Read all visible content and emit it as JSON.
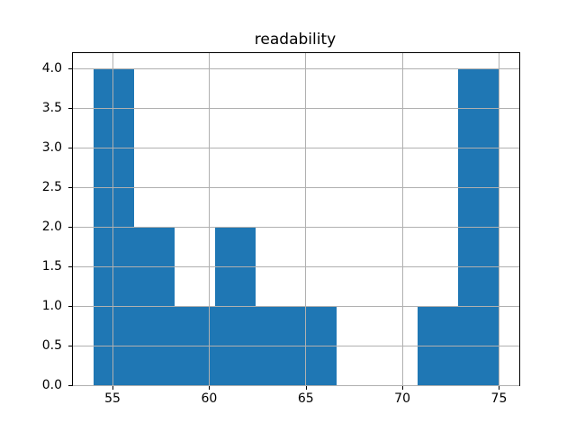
{
  "chart_data": {
    "type": "bar",
    "chart_kind": "histogram",
    "title": "readability",
    "xlabel": "",
    "ylabel": "",
    "bin_edges": [
      54.0,
      56.1,
      58.2,
      60.3,
      62.4,
      64.5,
      66.6,
      68.7,
      70.8,
      72.9,
      75.0
    ],
    "counts": [
      4,
      2,
      1,
      2,
      1,
      1,
      0,
      0,
      1,
      4
    ],
    "xlim": [
      52.95,
      76.05
    ],
    "ylim": [
      0,
      4.2
    ],
    "x_ticks": [
      55,
      60,
      65,
      70,
      75
    ],
    "x_tick_labels": [
      "55",
      "60",
      "65",
      "70",
      "75"
    ],
    "y_ticks": [
      0.0,
      0.5,
      1.0,
      1.5,
      2.0,
      2.5,
      3.0,
      3.5,
      4.0
    ],
    "y_tick_labels": [
      "0.0",
      "0.5",
      "1.0",
      "1.5",
      "2.0",
      "2.5",
      "3.0",
      "3.5",
      "4.0"
    ],
    "grid": true,
    "grid_on_top_of_bars": true,
    "legend": null,
    "colors": {
      "bar": "#1f77b4",
      "grid": "#b0b0b0",
      "spine": "#000000",
      "text": "#000000",
      "background": "#ffffff"
    }
  }
}
